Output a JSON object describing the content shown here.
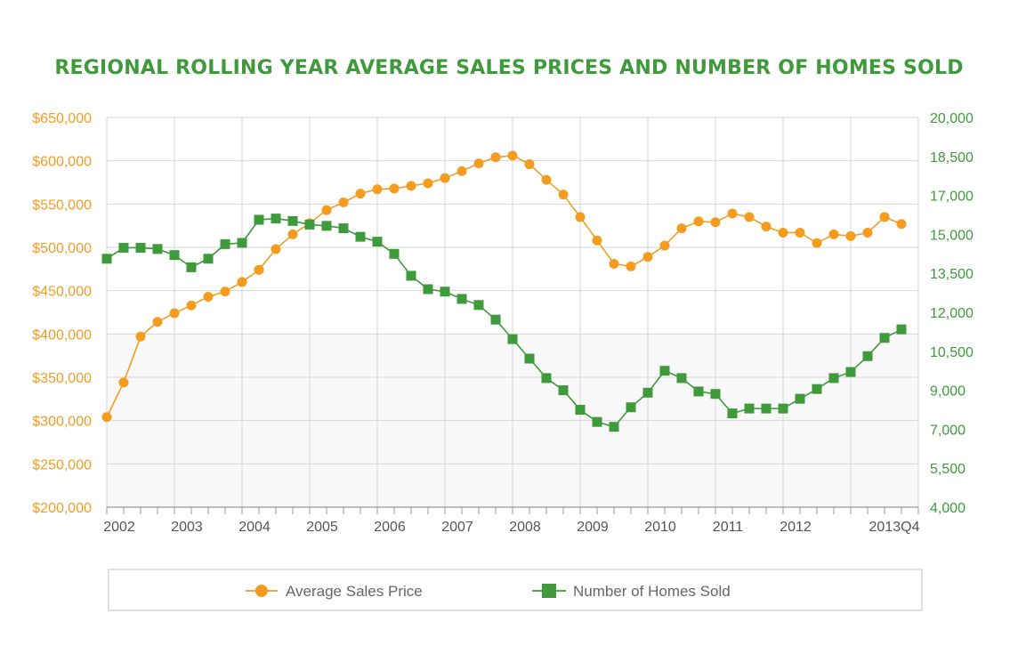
{
  "chart_data": {
    "type": "line",
    "title": "REGIONAL ROLLING YEAR AVERAGE SALES PRICES AND NUMBER OF HOMES SOLD",
    "x_tick_labels": [
      "2002",
      "2003",
      "2004",
      "2005",
      "2006",
      "2007",
      "2008",
      "2009",
      "2010",
      "2011",
      "2012",
      "2013Q4"
    ],
    "y_left": {
      "ticks": [
        "$650,000",
        "$600,000",
        "$550,000",
        "$500,000",
        "$450,000",
        "$400,000",
        "$350,000",
        "$300,000",
        "$250,000",
        "$200,000"
      ],
      "range": [
        200000,
        650000
      ]
    },
    "y_right": {
      "ticks": [
        "20,000",
        "18,500",
        "17,000",
        "15,000",
        "13,500",
        "12,000",
        "10,500",
        "9,000",
        "7,000",
        "5,500",
        "4,000"
      ],
      "range": [
        4000,
        20000
      ]
    },
    "grid": true,
    "legend_position": "bottom",
    "series": [
      {
        "name": "Average Sales Price",
        "axis": "left",
        "color": "#F39C1F",
        "marker": "circle",
        "x": [
          2002.0,
          2002.25,
          2002.5,
          2002.75,
          2003.0,
          2003.25,
          2003.5,
          2003.75,
          2004.0,
          2004.25,
          2004.5,
          2004.75,
          2005.0,
          2005.25,
          2005.5,
          2005.75,
          2006.0,
          2006.25,
          2006.5,
          2006.75,
          2007.0,
          2007.25,
          2007.5,
          2007.75,
          2008.0,
          2008.25,
          2008.5,
          2008.75,
          2009.0,
          2009.25,
          2009.5,
          2009.75,
          2010.0,
          2010.25,
          2010.5,
          2010.75,
          2011.0,
          2011.25,
          2011.5,
          2011.75,
          2012.0,
          2012.25,
          2012.5,
          2012.75,
          2013.0,
          2013.25,
          2013.5,
          2013.75
        ],
        "values": [
          304000,
          344000,
          397000,
          414000,
          424000,
          433000,
          443000,
          449000,
          460000,
          474000,
          498000,
          515000,
          528000,
          543000,
          552000,
          562000,
          567000,
          568000,
          571000,
          574000,
          580000,
          588000,
          597000,
          604000,
          606000,
          596000,
          578000,
          561000,
          535000,
          508000,
          481000,
          478000,
          489000,
          502000,
          522000,
          530000,
          529000,
          539000,
          535000,
          524000,
          517000,
          517000,
          505000,
          515000,
          513000,
          517000,
          535000,
          527000
        ]
      },
      {
        "name": "Number of Homes Sold",
        "axis": "right",
        "color": "#3E9A3A",
        "marker": "square",
        "x": [
          2002.0,
          2002.25,
          2002.5,
          2002.75,
          2003.0,
          2003.25,
          2003.5,
          2003.75,
          2004.0,
          2004.25,
          2004.5,
          2004.75,
          2005.0,
          2005.25,
          2005.5,
          2005.75,
          2006.0,
          2006.25,
          2006.5,
          2006.75,
          2007.0,
          2007.25,
          2007.5,
          2007.75,
          2008.0,
          2008.25,
          2008.5,
          2008.75,
          2009.0,
          2009.25,
          2009.5,
          2009.75,
          2010.0,
          2010.25,
          2010.5,
          2010.75,
          2011.0,
          2011.25,
          2011.5,
          2011.75,
          2012.0,
          2012.25,
          2012.5,
          2012.75,
          2013.0,
          2013.25,
          2013.5,
          2013.75
        ],
        "values": [
          14200,
          14650,
          14650,
          14600,
          14350,
          13850,
          14200,
          14800,
          14850,
          15800,
          15850,
          15750,
          15600,
          15550,
          15450,
          15100,
          14900,
          14400,
          13500,
          12950,
          12850,
          12550,
          12300,
          11700,
          10900,
          10100,
          9300,
          8800,
          8000,
          7500,
          7300,
          8100,
          8700,
          9600,
          9300,
          8750,
          8650,
          7850,
          8050,
          8050,
          8050,
          8450,
          8850,
          9300,
          9550,
          10200,
          10950,
          11300
        ]
      }
    ]
  },
  "colors": {
    "title": "#3E9A3A",
    "left_axis": "#F39C1F",
    "right_axis": "#3E9A3A",
    "x_axis": "#555555",
    "grid": "#D6D6D6",
    "legend_border": "#CCCCCC"
  }
}
